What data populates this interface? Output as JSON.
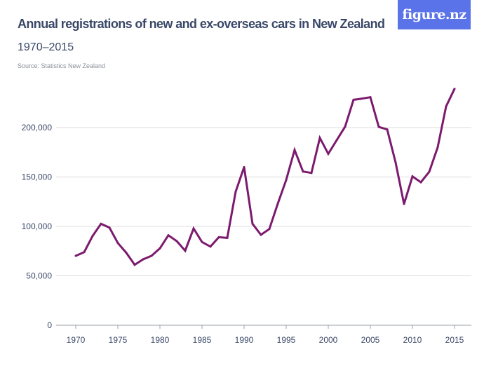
{
  "header": {
    "title": "Annual registrations of new and ex-overseas cars in New Zealand",
    "subtitle": "1970–2015",
    "source": "Source: Statistics New Zealand",
    "logo": "figure.nz",
    "logo_color": "#5b73e8"
  },
  "chart_data": {
    "type": "line",
    "title": "Annual registrations of new and ex-overseas cars in New Zealand",
    "subtitle": "1970–2015",
    "xlabel": "",
    "ylabel": "",
    "xlim": [
      1970,
      2015
    ],
    "ylim": [
      0,
      240000
    ],
    "grid": true,
    "line_color": "#7c1a6e",
    "x_ticks": [
      "1970",
      "1975",
      "1980",
      "1985",
      "1990",
      "1995",
      "2000",
      "2005",
      "2010",
      "2015"
    ],
    "y_ticks": [
      "0",
      "50,000",
      "100,000",
      "150,000",
      "200,000"
    ],
    "x": [
      1970,
      1971,
      1972,
      1973,
      1974,
      1975,
      1976,
      1977,
      1978,
      1979,
      1980,
      1981,
      1982,
      1983,
      1984,
      1985,
      1986,
      1987,
      1988,
      1989,
      1990,
      1991,
      1992,
      1993,
      1994,
      1995,
      1996,
      1997,
      1998,
      1999,
      2000,
      2001,
      2002,
      2003,
      2004,
      2005,
      2006,
      2007,
      2008,
      2009,
      2010,
      2011,
      2012,
      2013,
      2014,
      2015
    ],
    "values": [
      70200,
      74000,
      90300,
      102600,
      98800,
      83200,
      73300,
      61200,
      66700,
      70200,
      77800,
      91000,
      85100,
      75400,
      97900,
      84200,
      79600,
      89100,
      88400,
      135200,
      160000,
      102600,
      91500,
      97400,
      123000,
      147000,
      177300,
      155500,
      154100,
      189600,
      173500,
      187200,
      200900,
      228100,
      229300,
      230700,
      200700,
      198100,
      164700,
      122700,
      150600,
      144700,
      155300,
      180100,
      221500,
      239200
    ]
  }
}
